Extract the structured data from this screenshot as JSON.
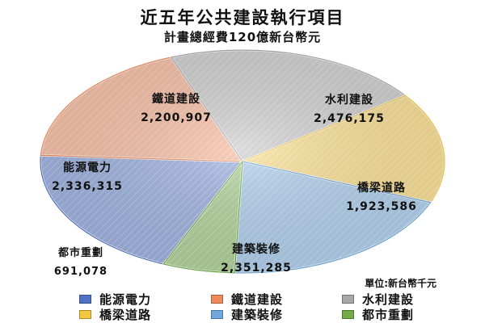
{
  "chart_data": {
    "type": "pie",
    "title": "近五年公共建設執行項目",
    "subtitle": "計畫總經費120億新台幣元",
    "unit": "單位:新台幣千元",
    "slices": [
      {
        "name": "能源電力",
        "label": "2,336,315",
        "value": 2336315,
        "color": "#4f72c4"
      },
      {
        "name": "鐵道建設",
        "label": "2,200,907",
        "value": 2200907,
        "color": "#ef8a5c"
      },
      {
        "name": "水利建設",
        "label": "2,476,175",
        "value": 2476175,
        "color": "#a8a8a8"
      },
      {
        "name": "橋梁道路",
        "label": "1,923,586",
        "value": 1923586,
        "color": "#f4c53e"
      },
      {
        "name": "建築裝修",
        "label": "2,351,285",
        "value": 2351285,
        "color": "#6fa8dc"
      },
      {
        "name": "都市重劃",
        "label": "691,078",
        "value": 691078,
        "color": "#70ad47"
      }
    ],
    "legend_position": "bottom"
  }
}
